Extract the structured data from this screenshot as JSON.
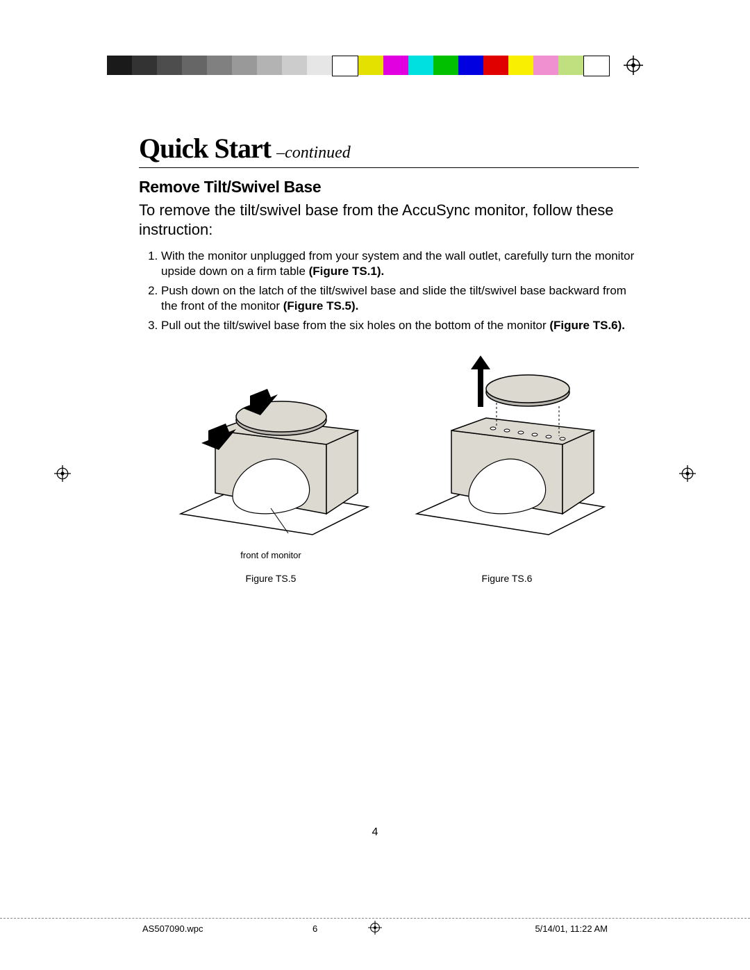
{
  "colorbar": {
    "grays": [
      "#1a1a1a",
      "#333333",
      "#4d4d4d",
      "#666666",
      "#808080",
      "#999999",
      "#b3b3b3",
      "#cccccc",
      "#e6e6e6",
      "#ffffff"
    ],
    "colors": [
      "#e4e000",
      "#e000e0",
      "#00e0e0",
      "#00c000",
      "#0000e0",
      "#e00000",
      "#f8f000",
      "#f090d0",
      "#c0e080",
      "#ffffff"
    ]
  },
  "title": {
    "main": "Quick Start",
    "sub": "–continued"
  },
  "section": "Remove Tilt/Swivel Base",
  "intro": "To remove the tilt/swivel base from the AccuSync monitor, follow these instruction:",
  "steps": [
    {
      "text": "With the monitor unplugged from your system and the wall outlet, carefully turn the monitor upside down on a firm table ",
      "boldRef": "(Figure TS.1)."
    },
    {
      "text": "Push down on the latch of the tilt/swivel base and slide the tilt/swivel base backward from the front of the monitor ",
      "boldRef": "(Figure TS.5)."
    },
    {
      "text": "Pull out the tilt/swivel base from the six holes on the bottom of the monitor ",
      "boldRef": "(Figure TS.6)."
    }
  ],
  "figures": {
    "frontLabel": "front of monitor",
    "cap1": "Figure TS.5",
    "cap2": "Figure TS.6"
  },
  "pageNumber": "4",
  "footer": {
    "filename": "AS507090.wpc",
    "sheet": "6",
    "datetime": "5/14/01, 11:22 AM"
  },
  "illustration": {
    "monitor_fill": "#dcdad0",
    "monitor_stroke": "#000000",
    "base_fill": "#b8b6ae",
    "table_fill": "#ffffff",
    "screen_blob": "#ffffff",
    "arrow_fill": "#000000"
  }
}
